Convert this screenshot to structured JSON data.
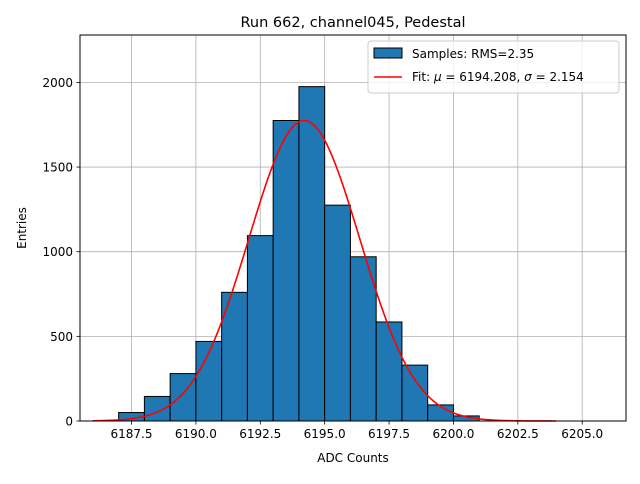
{
  "chart_data": {
    "type": "bar",
    "title": "Run 662, channel045, Pedestal",
    "xlabel": "ADC Counts",
    "ylabel": "Entries",
    "xlim": [
      6185.5,
      6206.7
    ],
    "ylim": [
      0,
      2280
    ],
    "xticks": [
      6187.5,
      6190.0,
      6192.5,
      6195.0,
      6197.5,
      6200.0,
      6202.5,
      6205.0
    ],
    "yticks": [
      0,
      500,
      1000,
      1500,
      2000
    ],
    "xtick_labels": [
      "6187.5",
      "6190.0",
      "6192.5",
      "6195.0",
      "6197.5",
      "6200.0",
      "6202.5",
      "6205.0"
    ],
    "ytick_labels": [
      "0",
      "500",
      "1000",
      "1500",
      "2000"
    ],
    "grid": true,
    "legend_position": "top-right",
    "histogram": {
      "name": "Samples: RMS=2.35",
      "color": "#1f77b4",
      "edge_color": "#000000",
      "bin_edges": [
        6187,
        6188,
        6189,
        6190,
        6191,
        6192,
        6193,
        6194,
        6195,
        6196,
        6197,
        6198,
        6199,
        6200,
        6201
      ],
      "counts": [
        50,
        145,
        280,
        470,
        760,
        1095,
        1775,
        1975,
        1275,
        970,
        585,
        330,
        95,
        30
      ]
    },
    "fit": {
      "name_prefix": "Fit: ",
      "name_mu_symbol": "μ",
      "name_mid": " = 6194.208, ",
      "name_sigma_symbol": "σ",
      "name_suffix": " = 2.154",
      "color": "#ff0000",
      "mu": 6194.208,
      "sigma": 2.154,
      "amplitude": 1775,
      "x_range": [
        6186,
        6204
      ]
    }
  }
}
